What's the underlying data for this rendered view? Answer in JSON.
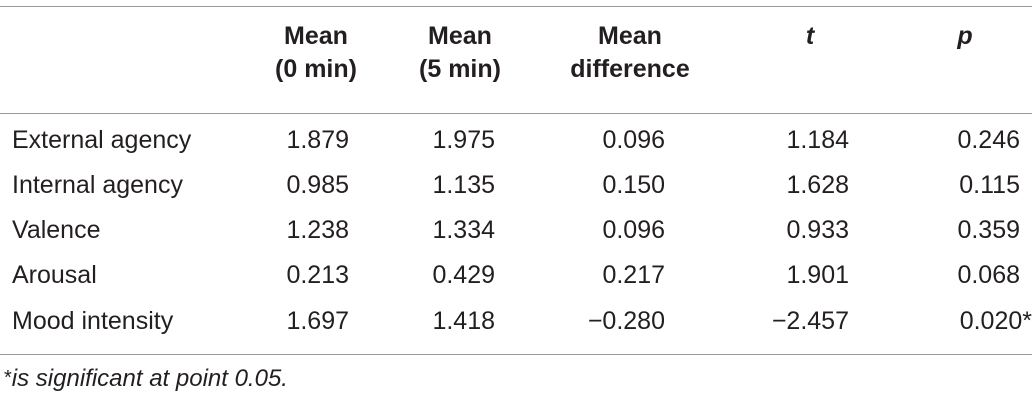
{
  "table": {
    "headers": [
      {
        "line1": "",
        "line2": ""
      },
      {
        "line1": "Mean",
        "line2": "(0 min)"
      },
      {
        "line1": "Mean",
        "line2": "(5 min)"
      },
      {
        "line1": "Mean",
        "line2": "difference"
      },
      {
        "line1": "t",
        "line2": ""
      },
      {
        "line1": "p",
        "line2": ""
      }
    ],
    "rows": [
      {
        "label": "External agency",
        "mean0": "1.879",
        "mean5": "1.975",
        "diff": "0.096",
        "t": "1.184",
        "p": "0.246"
      },
      {
        "label": "Internal agency",
        "mean0": "0.985",
        "mean5": "1.135",
        "diff": "0.150",
        "t": "1.628",
        "p": "0.115"
      },
      {
        "label": "Valence",
        "mean0": "1.238",
        "mean5": "1.334",
        "diff": "0.096",
        "t": "0.933",
        "p": "0.359"
      },
      {
        "label": "Arousal",
        "mean0": "0.213",
        "mean5": "0.429",
        "diff": "0.217",
        "t": "1.901",
        "p": "0.068"
      },
      {
        "label": "Mood intensity",
        "mean0": "1.697",
        "mean5": "1.418",
        "diff": "−0.280",
        "t": "−2.457",
        "p": "0.020*"
      }
    ]
  },
  "footnote": {
    "symbol": "*",
    "text": "is significant at point 0.05."
  }
}
